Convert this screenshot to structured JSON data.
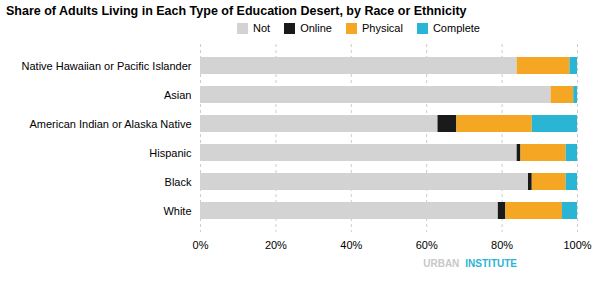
{
  "chart_data": {
    "type": "bar",
    "orientation": "horizontal",
    "stacked": true,
    "title": "Share of Adults Living in Each Type of Education Desert, by Race or Ethnicity",
    "categories": [
      "Native Hawaiian or Pacific Islander",
      "Asian",
      "American Indian or Alaska Native",
      "Hispanic",
      "Black",
      "White"
    ],
    "series": [
      {
        "name": "Not",
        "color": "#d3d3d3",
        "values": [
          84,
          93,
          63,
          84,
          87,
          79
        ]
      },
      {
        "name": "Online",
        "color": "#1a1a1a",
        "values": [
          0,
          0,
          5,
          1,
          1,
          2
        ]
      },
      {
        "name": "Physical",
        "color": "#f5a623",
        "values": [
          14,
          6,
          20,
          12,
          9,
          15
        ]
      },
      {
        "name": "Complete",
        "color": "#29b5d3",
        "values": [
          2,
          1,
          12,
          3,
          3,
          4
        ]
      }
    ],
    "xlim": [
      0,
      100
    ],
    "xticks": [
      {
        "value": 0,
        "label": "0%"
      },
      {
        "value": 20,
        "label": "20%"
      },
      {
        "value": 40,
        "label": "40%"
      },
      {
        "value": 60,
        "label": "60%"
      },
      {
        "value": 80,
        "label": "80%"
      },
      {
        "value": 100,
        "label": "100%"
      }
    ],
    "grid": true,
    "legend": "top",
    "annotations": [
      {
        "text": "URBAN",
        "color": "#c8c8c8"
      },
      {
        "text": "INSTITUTE",
        "color": "#29b5d3"
      }
    ]
  }
}
